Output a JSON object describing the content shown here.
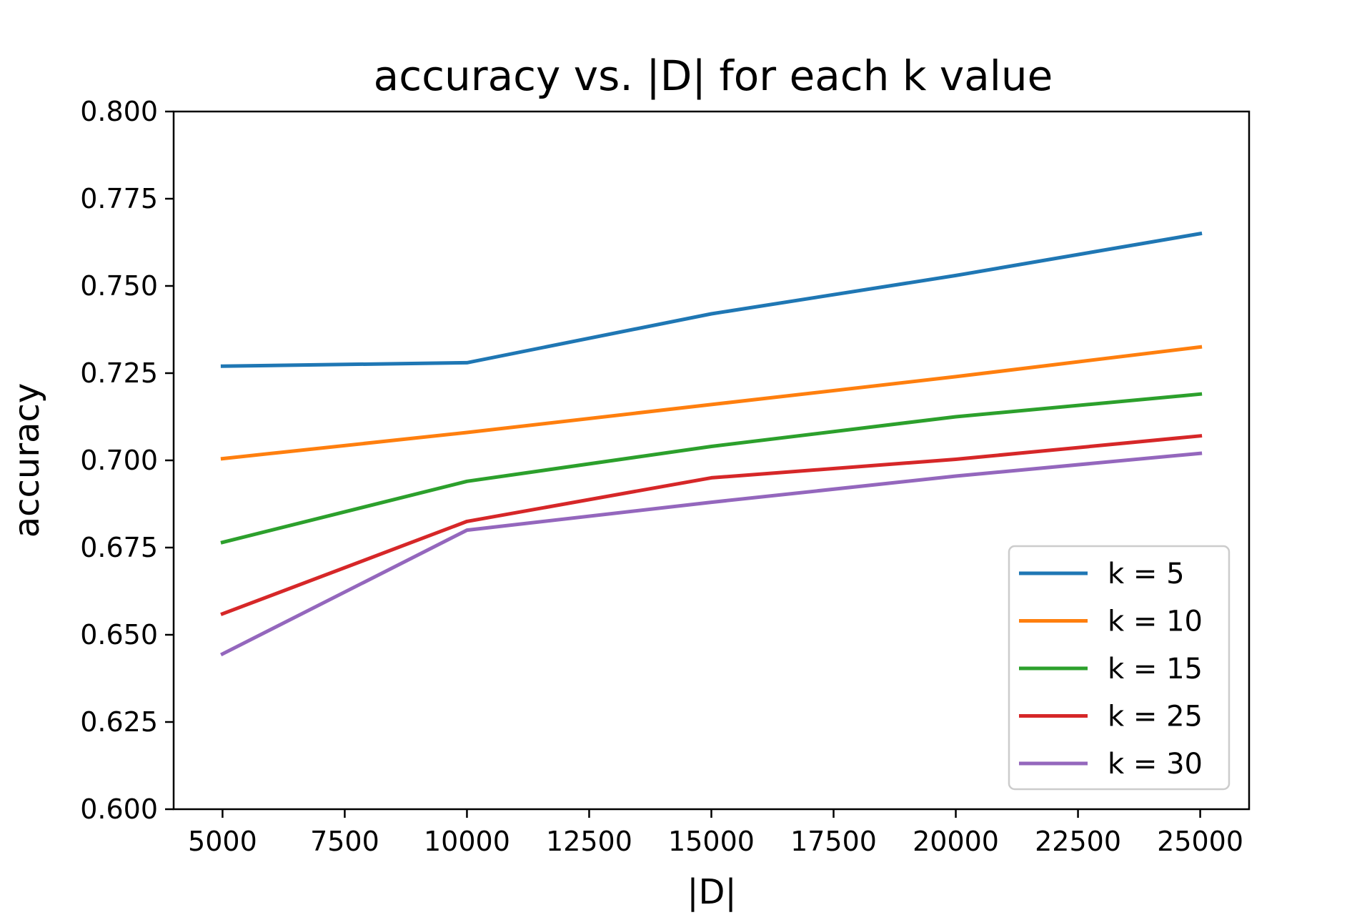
{
  "chart_data": {
    "type": "line",
    "title": "accuracy vs. |D| for each k value",
    "xlabel": "|D|",
    "ylabel": "accuracy",
    "x": [
      5000,
      10000,
      15000,
      20000,
      25000
    ],
    "xlim": [
      4000,
      26000
    ],
    "ylim": [
      0.6,
      0.8
    ],
    "xticks": [
      5000,
      7500,
      10000,
      12500,
      15000,
      17500,
      20000,
      22500,
      25000
    ],
    "xtick_labels": [
      "5000",
      "7500",
      "10000",
      "12500",
      "15000",
      "17500",
      "20000",
      "22500",
      "25000"
    ],
    "yticks": [
      0.6,
      0.625,
      0.65,
      0.675,
      0.7,
      0.725,
      0.75,
      0.775,
      0.8
    ],
    "ytick_labels": [
      "0.600",
      "0.625",
      "0.650",
      "0.675",
      "0.700",
      "0.725",
      "0.750",
      "0.775",
      "0.800"
    ],
    "grid": false,
    "legend_position": "bottom-right",
    "series": [
      {
        "name": "k = 5",
        "color": "#1f77b4",
        "values": [
          0.727,
          0.728,
          0.742,
          0.753,
          0.765
        ]
      },
      {
        "name": "k = 10",
        "color": "#ff7f0e",
        "values": [
          0.7005,
          0.708,
          0.716,
          0.724,
          0.7325
        ]
      },
      {
        "name": "k = 15",
        "color": "#2ca02c",
        "values": [
          0.6765,
          0.694,
          0.704,
          0.7125,
          0.719
        ]
      },
      {
        "name": "k = 25",
        "color": "#d62728",
        "values": [
          0.656,
          0.6825,
          0.695,
          0.7003,
          0.707
        ]
      },
      {
        "name": "k = 30",
        "color": "#9467bd",
        "values": [
          0.6445,
          0.68,
          0.688,
          0.6955,
          0.702
        ]
      }
    ]
  }
}
